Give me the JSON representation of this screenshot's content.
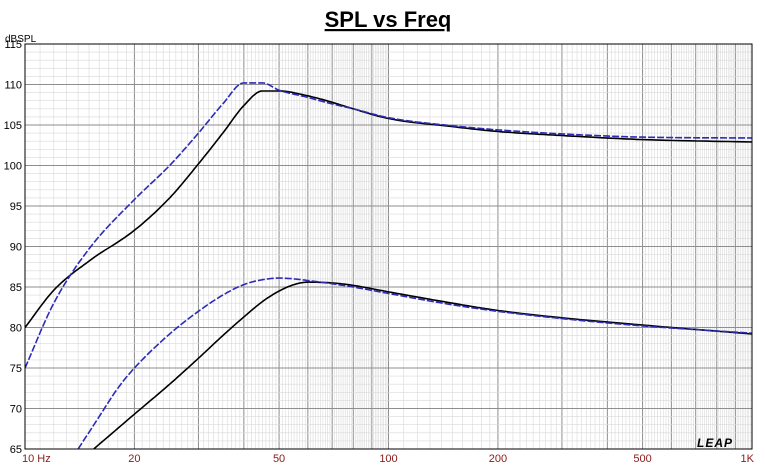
{
  "chart_data": {
    "type": "line",
    "title": "SPL vs Freq",
    "ylabel": "dBSPL",
    "xlabel": "",
    "xscale": "log",
    "xlim": [
      10,
      1000
    ],
    "ylim": [
      65,
      115
    ],
    "yticks": [
      "65",
      "70",
      "75",
      "80",
      "85",
      "90",
      "95",
      "100",
      "105",
      "110",
      "115"
    ],
    "xticks": [
      {
        "value": 10,
        "label": "10 Hz"
      },
      {
        "value": 20,
        "label": "20"
      },
      {
        "value": 50,
        "label": "50"
      },
      {
        "value": 100,
        "label": "100"
      },
      {
        "value": 200,
        "label": "200"
      },
      {
        "value": 500,
        "label": "500"
      },
      {
        "value": 1000,
        "label": "1K"
      }
    ],
    "grid": true,
    "logo": "LEAP",
    "series": [
      {
        "color": "#000000",
        "dash": false,
        "x": [
          10,
          12,
          15,
          20,
          25,
          30,
          35,
          40,
          45,
          50,
          60,
          70,
          80,
          100,
          150,
          200,
          300,
          500,
          1000
        ],
        "y": [
          80.0,
          84.6,
          88.2,
          92.0,
          96.0,
          100.2,
          104.0,
          107.4,
          109.2,
          109.2,
          108.6,
          107.8,
          107.0,
          105.8,
          104.8,
          104.2,
          103.7,
          103.2,
          102.9
        ]
      },
      {
        "color": "#2b2bb8",
        "dash": true,
        "x": [
          10,
          12,
          15,
          20,
          25,
          30,
          35,
          40,
          45,
          50,
          60,
          70,
          80,
          100,
          150,
          200,
          300,
          500,
          1000
        ],
        "y": [
          75.0,
          83.0,
          89.7,
          95.8,
          100.0,
          104.0,
          107.6,
          110.2,
          110.2,
          109.3,
          108.4,
          107.6,
          107.0,
          105.9,
          104.9,
          104.4,
          103.9,
          103.5,
          103.4
        ]
      },
      {
        "color": "#000000",
        "dash": false,
        "x": [
          15,
          20,
          25,
          30,
          35,
          40,
          45,
          50,
          55,
          60,
          70,
          80,
          100,
          150,
          200,
          300,
          500,
          1000
        ],
        "y": [
          64.5,
          69.3,
          73.0,
          76.2,
          79.0,
          81.3,
          83.2,
          84.5,
          85.3,
          85.6,
          85.5,
          85.2,
          84.4,
          83.0,
          82.1,
          81.2,
          80.3,
          79.2
        ]
      },
      {
        "color": "#2b2bb8",
        "dash": true,
        "x": [
          14,
          16,
          18,
          20,
          25,
          30,
          35,
          40,
          45,
          50,
          55,
          60,
          70,
          80,
          100,
          150,
          200,
          300,
          500,
          1000
        ],
        "y": [
          65.0,
          69.0,
          72.5,
          75.0,
          79.2,
          82.0,
          84.0,
          85.3,
          85.9,
          86.1,
          86.0,
          85.8,
          85.4,
          85.0,
          84.2,
          82.8,
          82.0,
          81.1,
          80.2,
          79.3
        ]
      }
    ]
  }
}
